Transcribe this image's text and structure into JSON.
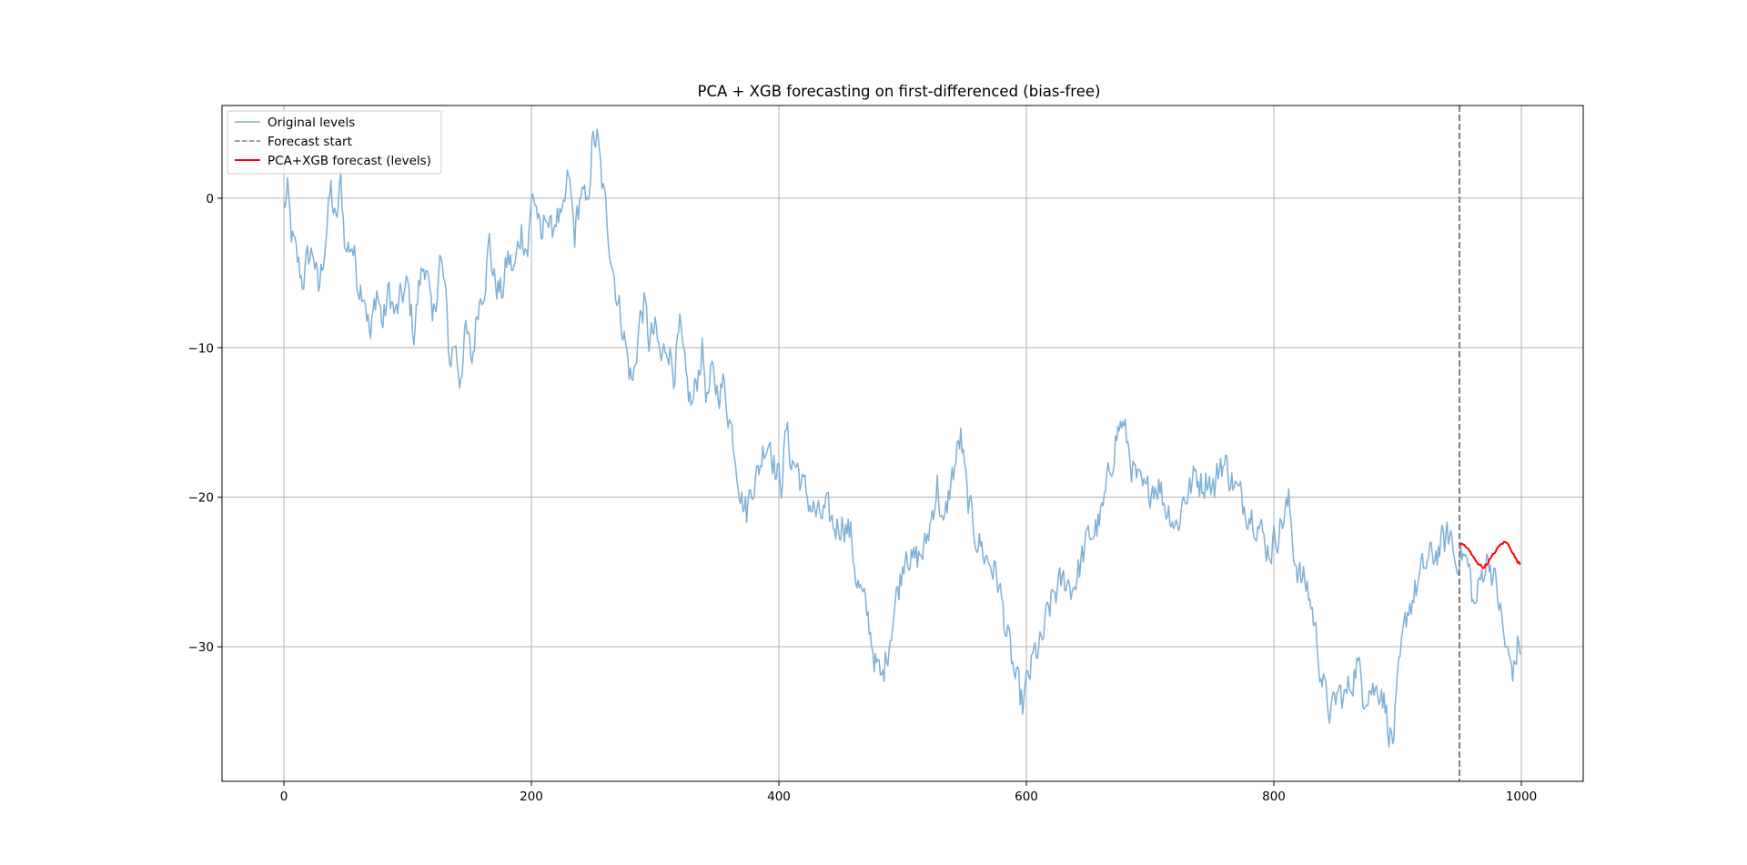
{
  "chart_data": {
    "type": "line",
    "title": "PCA + XGB forecasting on first-differenced (bias-free)",
    "xlabel": "",
    "ylabel": "",
    "xlim": [
      -50,
      1050
    ],
    "ylim": [
      -39,
      6.2
    ],
    "xticks": [
      0,
      200,
      400,
      600,
      800,
      1000
    ],
    "yticks": [
      0,
      -10,
      -20,
      -30
    ],
    "xtick_labels": [
      "0",
      "200",
      "400",
      "600",
      "800",
      "1000"
    ],
    "ytick_labels": [
      "0",
      "−10",
      "−20",
      "−30"
    ],
    "grid": true,
    "legend_position": "top-left",
    "colors": {
      "original": "#7fb0d6",
      "forecast_start": "#808080",
      "forecast": "#ff0000",
      "grid": "#b0b0b0",
      "axes": "#000000"
    },
    "forecast_start_x": 950,
    "series": [
      {
        "name": "Original levels",
        "style": "solid",
        "anchors": [
          [
            0,
            -0.6
          ],
          [
            3,
            0.2
          ],
          [
            6,
            -2.5
          ],
          [
            10,
            -4.0
          ],
          [
            15,
            -5.5
          ],
          [
            20,
            -4.0
          ],
          [
            24,
            -3.5
          ],
          [
            28,
            -6.5
          ],
          [
            33,
            -3.0
          ],
          [
            38,
            0.5
          ],
          [
            42,
            -2.0
          ],
          [
            46,
            1.0
          ],
          [
            50,
            -3.5
          ],
          [
            55,
            -3.0
          ],
          [
            60,
            -5.5
          ],
          [
            65,
            -6.0
          ],
          [
            70,
            -9.5
          ],
          [
            75,
            -6.0
          ],
          [
            80,
            -8.5
          ],
          [
            85,
            -6.2
          ],
          [
            90,
            -8.0
          ],
          [
            96,
            -6.5
          ],
          [
            100,
            -6.0
          ],
          [
            105,
            -9.0
          ],
          [
            110,
            -5.5
          ],
          [
            115,
            -4.0
          ],
          [
            120,
            -9.0
          ],
          [
            126,
            -4.0
          ],
          [
            130,
            -6.0
          ],
          [
            134,
            -11.0
          ],
          [
            138,
            -9.5
          ],
          [
            142,
            -12.0
          ],
          [
            147,
            -9.0
          ],
          [
            152,
            -11.0
          ],
          [
            157,
            -7.0
          ],
          [
            162,
            -5.5
          ],
          [
            166,
            -3.0
          ],
          [
            170,
            -5.5
          ],
          [
            176,
            -6.5
          ],
          [
            181,
            -4.0
          ],
          [
            186,
            -5.0
          ],
          [
            192,
            -2.0
          ],
          [
            197,
            -3.5
          ],
          [
            201,
            0.5
          ],
          [
            205,
            -1.0
          ],
          [
            208,
            -3.5
          ],
          [
            212,
            -0.5
          ],
          [
            216,
            -2.5
          ],
          [
            220,
            -1.0
          ],
          [
            225,
            -2.0
          ],
          [
            230,
            1.5
          ],
          [
            235,
            -2.5
          ],
          [
            240,
            0.5
          ],
          [
            245,
            -1.0
          ],
          [
            249,
            3.5
          ],
          [
            253,
            4.0
          ],
          [
            257,
            1.0
          ],
          [
            262,
            -2.0
          ],
          [
            266,
            -4.5
          ],
          [
            270,
            -7.0
          ],
          [
            274,
            -8.5
          ],
          [
            278,
            -11.0
          ],
          [
            282,
            -12.5
          ],
          [
            287,
            -8.5
          ],
          [
            291,
            -7.0
          ],
          [
            295,
            -9.5
          ],
          [
            300,
            -9.0
          ],
          [
            305,
            -11.0
          ],
          [
            310,
            -9.5
          ],
          [
            315,
            -11.5
          ],
          [
            320,
            -9.0
          ],
          [
            325,
            -12.5
          ],
          [
            330,
            -14.0
          ],
          [
            334,
            -12.0
          ],
          [
            338,
            -10.0
          ],
          [
            342,
            -13.5
          ],
          [
            346,
            -12.0
          ],
          [
            350,
            -12.8
          ],
          [
            355,
            -12.5
          ],
          [
            360,
            -14.5
          ],
          [
            365,
            -17.0
          ],
          [
            370,
            -20.0
          ],
          [
            374,
            -21.0
          ],
          [
            378,
            -19.0
          ],
          [
            383,
            -18.5
          ],
          [
            388,
            -16.5
          ],
          [
            393,
            -16.0
          ],
          [
            398,
            -18.5
          ],
          [
            402,
            -19.0
          ],
          [
            406,
            -15.5
          ],
          [
            410,
            -17.5
          ],
          [
            415,
            -18.0
          ],
          [
            420,
            -19.5
          ],
          [
            426,
            -20.5
          ],
          [
            432,
            -21.5
          ],
          [
            438,
            -21.0
          ],
          [
            445,
            -22.0
          ],
          [
            452,
            -21.5
          ],
          [
            458,
            -22.5
          ],
          [
            463,
            -25.5
          ],
          [
            468,
            -27.0
          ],
          [
            473,
            -28.5
          ],
          [
            478,
            -31.0
          ],
          [
            483,
            -32.5
          ],
          [
            488,
            -30.0
          ],
          [
            493,
            -27.5
          ],
          [
            498,
            -25.5
          ],
          [
            503,
            -23.0
          ],
          [
            508,
            -24.5
          ],
          [
            513,
            -24.0
          ],
          [
            518,
            -23.5
          ],
          [
            523,
            -21.5
          ],
          [
            528,
            -19.0
          ],
          [
            533,
            -22.5
          ],
          [
            538,
            -19.5
          ],
          [
            543,
            -17.5
          ],
          [
            547,
            -16.0
          ],
          [
            552,
            -20.0
          ],
          [
            557,
            -22.0
          ],
          [
            562,
            -23.0
          ],
          [
            567,
            -24.0
          ],
          [
            572,
            -24.5
          ],
          [
            577,
            -25.5
          ],
          [
            582,
            -28.0
          ],
          [
            587,
            -30.5
          ],
          [
            592,
            -32.5
          ],
          [
            597,
            -34.0
          ],
          [
            602,
            -32.0
          ],
          [
            607,
            -30.5
          ],
          [
            612,
            -30.0
          ],
          [
            617,
            -28.0
          ],
          [
            622,
            -26.5
          ],
          [
            627,
            -26.0
          ],
          [
            632,
            -25.5
          ],
          [
            637,
            -26.0
          ],
          [
            642,
            -25.0
          ],
          [
            647,
            -23.5
          ],
          [
            652,
            -22.5
          ],
          [
            657,
            -22.0
          ],
          [
            662,
            -21.0
          ],
          [
            667,
            -18.5
          ],
          [
            672,
            -16.0
          ],
          [
            677,
            -15.0
          ],
          [
            682,
            -16.5
          ],
          [
            687,
            -18.5
          ],
          [
            692,
            -19.5
          ],
          [
            697,
            -20.0
          ],
          [
            702,
            -19.0
          ],
          [
            707,
            -19.0
          ],
          [
            712,
            -20.5
          ],
          [
            717,
            -21.0
          ],
          [
            722,
            -22.0
          ],
          [
            727,
            -20.0
          ],
          [
            732,
            -19.5
          ],
          [
            737,
            -18.5
          ],
          [
            742,
            -19.0
          ],
          [
            747,
            -18.5
          ],
          [
            752,
            -19.5
          ],
          [
            757,
            -17.5
          ],
          [
            762,
            -18.0
          ],
          [
            767,
            -19.0
          ],
          [
            772,
            -20.0
          ],
          [
            777,
            -20.5
          ],
          [
            782,
            -21.0
          ],
          [
            787,
            -21.5
          ],
          [
            792,
            -23.0
          ],
          [
            797,
            -23.5
          ],
          [
            802,
            -22.5
          ],
          [
            807,
            -21.5
          ],
          [
            812,
            -20.5
          ],
          [
            817,
            -24.0
          ],
          [
            822,
            -25.5
          ],
          [
            827,
            -26.0
          ],
          [
            832,
            -28.0
          ],
          [
            837,
            -31.0
          ],
          [
            842,
            -33.5
          ],
          [
            847,
            -34.5
          ],
          [
            852,
            -33.0
          ],
          [
            857,
            -33.5
          ],
          [
            862,
            -32.5
          ],
          [
            867,
            -31.0
          ],
          [
            872,
            -33.0
          ],
          [
            877,
            -32.5
          ],
          [
            882,
            -33.0
          ],
          [
            887,
            -32.5
          ],
          [
            892,
            -35.0
          ],
          [
            896,
            -36.5
          ],
          [
            900,
            -33.0
          ],
          [
            904,
            -30.0
          ],
          [
            908,
            -27.5
          ],
          [
            913,
            -26.5
          ],
          [
            918,
            -25.5
          ],
          [
            923,
            -24.5
          ],
          [
            928,
            -24.0
          ],
          [
            933,
            -23.5
          ],
          [
            938,
            -23.0
          ],
          [
            943,
            -22.5
          ],
          [
            947,
            -24.5
          ],
          [
            950,
            -23.5
          ],
          [
            954,
            -24.0
          ],
          [
            958,
            -25.0
          ],
          [
            962,
            -27.5
          ],
          [
            966,
            -26.0
          ],
          [
            970,
            -24.5
          ],
          [
            974,
            -24.0
          ],
          [
            978,
            -25.5
          ],
          [
            982,
            -27.0
          ],
          [
            986,
            -29.5
          ],
          [
            990,
            -31.0
          ],
          [
            994,
            -31.5
          ],
          [
            997,
            -30.0
          ],
          [
            999,
            -30.5
          ]
        ]
      },
      {
        "name": "Forecast start",
        "style": "dashed"
      },
      {
        "name": "PCA+XGB forecast (levels)",
        "style": "solid",
        "x_range": [
          950,
          999
        ],
        "anchors": [
          [
            950,
            -23.1
          ],
          [
            954,
            -23.2
          ],
          [
            958,
            -23.6
          ],
          [
            962,
            -24.1
          ],
          [
            966,
            -24.5
          ],
          [
            969,
            -24.7
          ],
          [
            972,
            -24.5
          ],
          [
            976,
            -24.0
          ],
          [
            980,
            -23.5
          ],
          [
            984,
            -23.1
          ],
          [
            987,
            -23.0
          ],
          [
            990,
            -23.2
          ],
          [
            993,
            -23.7
          ],
          [
            996,
            -24.2
          ],
          [
            999,
            -24.5
          ]
        ]
      }
    ]
  }
}
